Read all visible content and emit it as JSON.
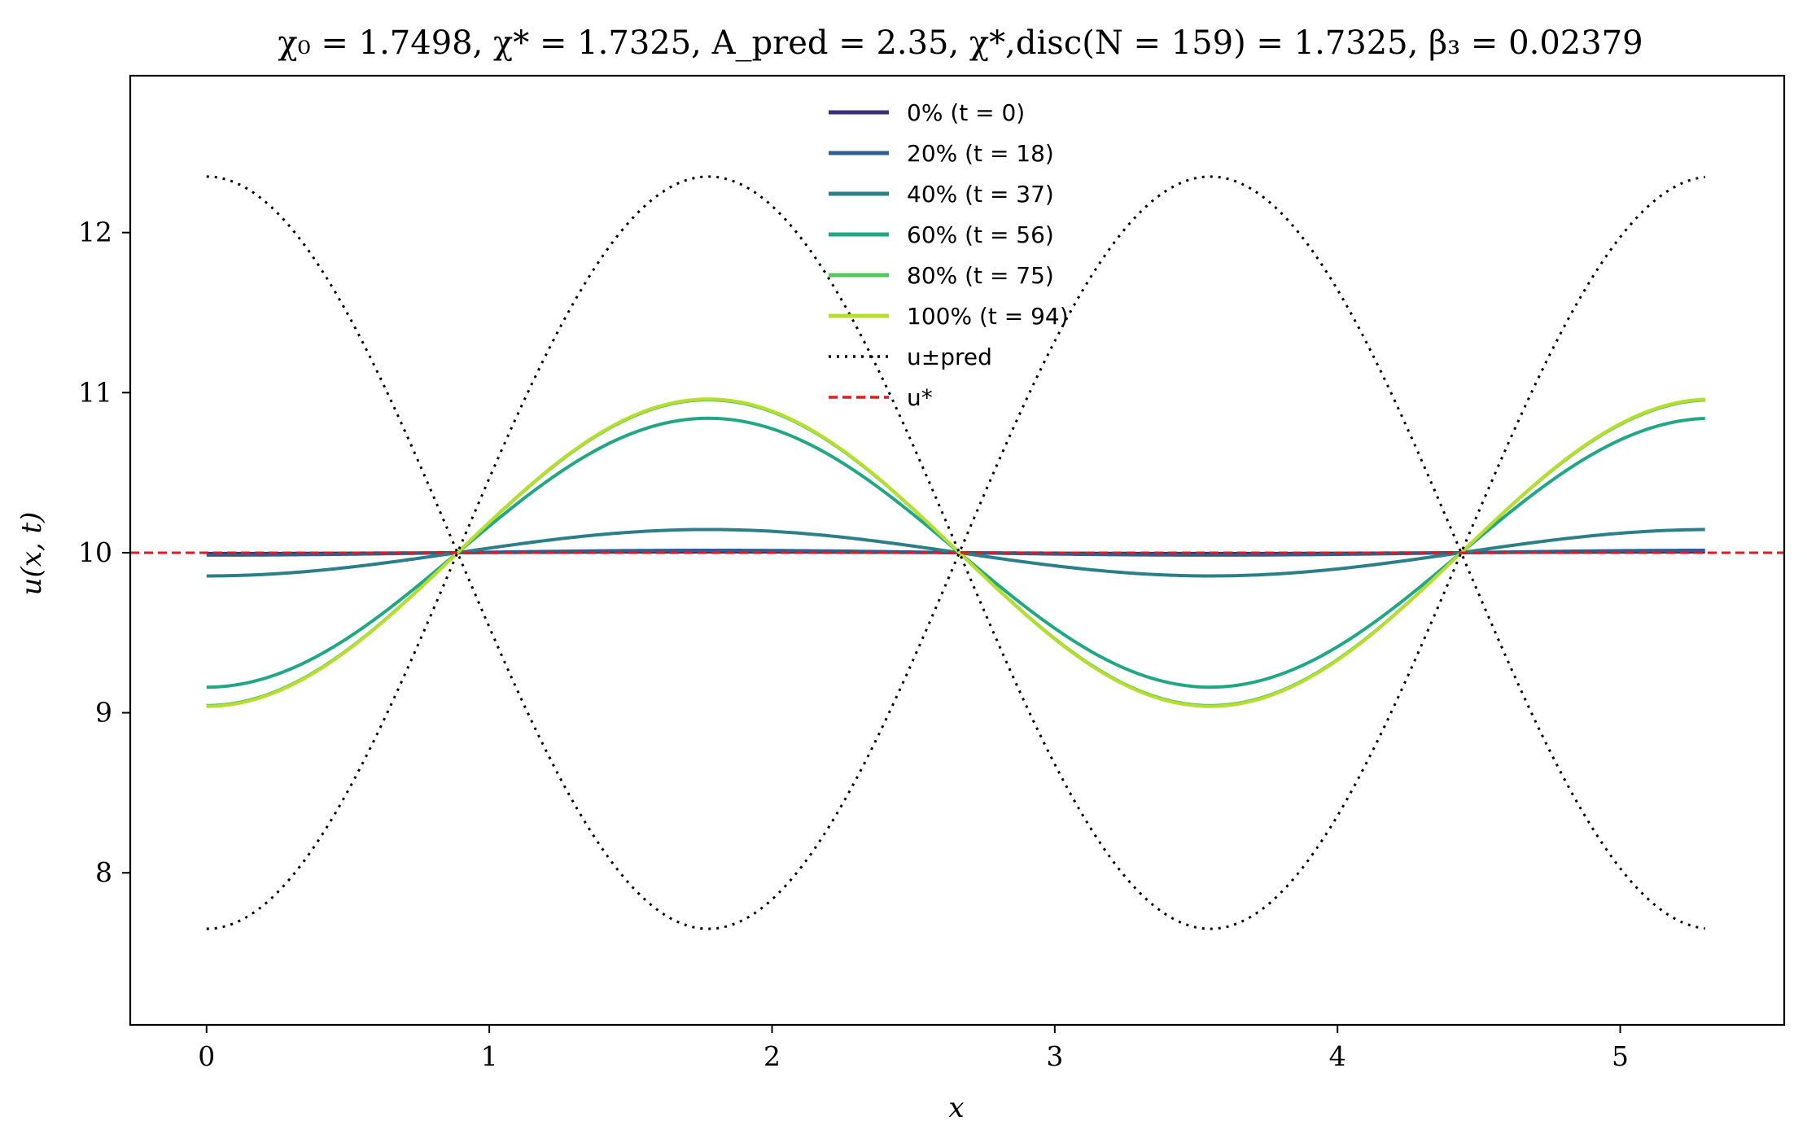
{
  "chart_data": {
    "type": "line",
    "title": "χ₀ = 1.7498,  χ* = 1.7325,  A_pred = 2.35,  χ*,disc(N = 159) = 1.7325,  β₃ = 0.02379",
    "xlabel": "x",
    "ylabel": "u(x, t)",
    "xlim": [
      -0.27,
      5.58
    ],
    "ylim": [
      7.05,
      12.98
    ],
    "x_ticks": [
      0,
      1,
      2,
      3,
      4,
      5
    ],
    "y_ticks": [
      8,
      9,
      10,
      11,
      12
    ],
    "grid": false,
    "legend_position": "top-center",
    "domain": [
      0,
      5.3
    ],
    "period": 3.55,
    "baseline": 10,
    "series": [
      {
        "name": "0% (t = 0)",
        "style": "solid",
        "color": "#3b2f7a",
        "amplitude": -0.005
      },
      {
        "name": "20% (t = 18)",
        "style": "solid",
        "color": "#2f5f8f",
        "amplitude": -0.015
      },
      {
        "name": "40% (t = 37)",
        "style": "solid",
        "color": "#2a7f88",
        "amplitude": -0.145
      },
      {
        "name": "60% (t = 56)",
        "style": "solid",
        "color": "#22a785",
        "amplitude": -0.84
      },
      {
        "name": "80% (t = 75)",
        "style": "solid",
        "color": "#58c361",
        "amplitude": -0.955
      },
      {
        "name": "100% (t = 94)",
        "style": "solid",
        "color": "#b7dd2e",
        "amplitude": -0.96
      },
      {
        "name": "u±pred",
        "style": "dotted",
        "color": "#000000",
        "amplitude": 2.35,
        "both_signs": true
      },
      {
        "name": "u*",
        "style": "dashed",
        "color": "#e31a1c",
        "value": 10
      }
    ],
    "legend": [
      {
        "label": "0% (t = 0)",
        "color": "#3b2f7a",
        "style": "solid"
      },
      {
        "label": "20% (t = 18)",
        "color": "#2f5f8f",
        "style": "solid"
      },
      {
        "label": "40% (t = 37)",
        "color": "#2a7f88",
        "style": "solid"
      },
      {
        "label": "60% (t = 56)",
        "color": "#22a785",
        "style": "solid"
      },
      {
        "label": "80% (t = 75)",
        "color": "#58c361",
        "style": "solid"
      },
      {
        "label": "100% (t = 94)",
        "color": "#b7dd2e",
        "style": "solid"
      },
      {
        "label": "u±pred",
        "color": "#000000",
        "style": "dotted"
      },
      {
        "label": "u*",
        "color": "#e31a1c",
        "style": "dashed"
      }
    ]
  }
}
